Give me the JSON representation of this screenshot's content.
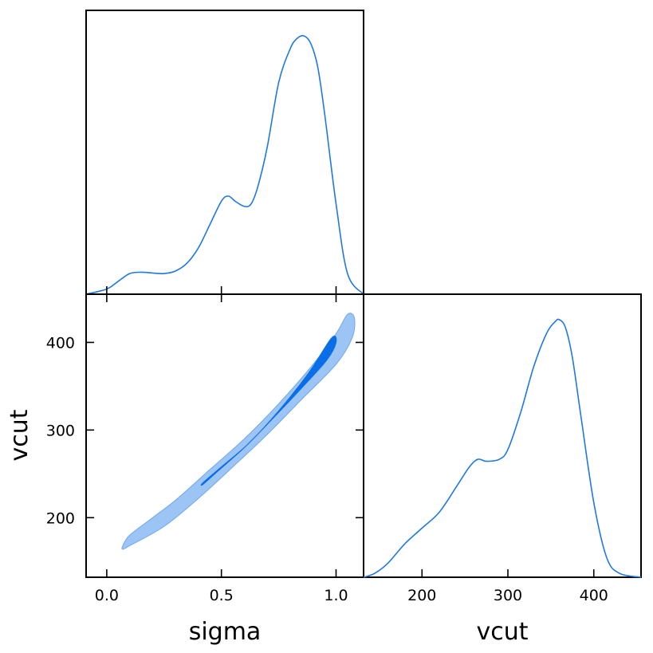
{
  "colors": {
    "line": "#1f78e4",
    "outer_fill": "#9cc4f5",
    "outer_edge": "#6fa8ef",
    "inner_fill": "#0a6ee8"
  },
  "chart_data": [
    {
      "panel": "sigma-marginal",
      "type": "line",
      "xlim": [
        -0.09,
        1.12
      ],
      "x": [
        -0.09,
        0.0,
        0.05,
        0.1,
        0.15,
        0.2,
        0.25,
        0.3,
        0.35,
        0.4,
        0.45,
        0.5,
        0.53,
        0.56,
        0.6,
        0.63,
        0.66,
        0.7,
        0.75,
        0.8,
        0.83,
        0.86,
        0.89,
        0.92,
        0.95,
        1.0,
        1.05,
        1.12
      ],
      "y": [
        0.0,
        0.02,
        0.05,
        0.08,
        0.085,
        0.082,
        0.08,
        0.09,
        0.12,
        0.18,
        0.27,
        0.36,
        0.38,
        0.36,
        0.34,
        0.35,
        0.42,
        0.57,
        0.82,
        0.95,
        0.99,
        1.0,
        0.97,
        0.88,
        0.7,
        0.35,
        0.08,
        0.0
      ]
    },
    {
      "panel": "joint",
      "type": "contour",
      "xlabel": "sigma",
      "ylabel": "vcut",
      "xlim": [
        -0.09,
        1.12
      ],
      "ylim": [
        132,
        455
      ],
      "xticks": [
        "0.0",
        "0.5",
        "1.0"
      ],
      "xtick_values": [
        0.0,
        0.5,
        1.0
      ],
      "yticks": [
        "200",
        "300",
        "400"
      ],
      "ytick_values": [
        200,
        300,
        400
      ],
      "levels": [
        {
          "name": "outer",
          "points": [
            [
              0.07,
              168
            ],
            [
              0.1,
              180
            ],
            [
              0.2,
              200
            ],
            [
              0.3,
              220
            ],
            [
              0.45,
              255
            ],
            [
              0.6,
              290
            ],
            [
              0.75,
              330
            ],
            [
              0.9,
              375
            ],
            [
              1.0,
              410
            ],
            [
              1.05,
              432
            ],
            [
              1.08,
              428
            ],
            [
              1.07,
              405
            ],
            [
              1.0,
              375
            ],
            [
              0.85,
              335
            ],
            [
              0.7,
              295
            ],
            [
              0.55,
              258
            ],
            [
              0.4,
              222
            ],
            [
              0.25,
              190
            ],
            [
              0.1,
              168
            ],
            [
              0.07,
              164
            ]
          ]
        },
        {
          "name": "inner",
          "points": [
            [
              0.42,
              240
            ],
            [
              0.5,
              258
            ],
            [
              0.62,
              285
            ],
            [
              0.75,
              322
            ],
            [
              0.88,
              365
            ],
            [
              0.98,
              405
            ],
            [
              1.0,
              400
            ],
            [
              0.96,
              380
            ],
            [
              0.85,
              348
            ],
            [
              0.72,
              312
            ],
            [
              0.6,
              280
            ],
            [
              0.48,
              252
            ],
            [
              0.42,
              238
            ]
          ]
        }
      ]
    },
    {
      "panel": "vcut-marginal",
      "type": "line",
      "xlabel": "vcut",
      "xlim": [
        132,
        455
      ],
      "xticks": [
        "200",
        "300",
        "400"
      ],
      "xtick_values": [
        200,
        300,
        400
      ],
      "x": [
        132,
        145,
        160,
        180,
        200,
        220,
        240,
        255,
        265,
        275,
        290,
        300,
        315,
        330,
        345,
        355,
        360,
        367,
        375,
        385,
        400,
        415,
        430,
        455
      ],
      "y": [
        0.0,
        0.02,
        0.07,
        0.17,
        0.25,
        0.33,
        0.46,
        0.56,
        0.6,
        0.59,
        0.6,
        0.65,
        0.84,
        1.07,
        1.24,
        1.3,
        1.31,
        1.27,
        1.12,
        0.82,
        0.38,
        0.1,
        0.02,
        0.0
      ]
    }
  ]
}
